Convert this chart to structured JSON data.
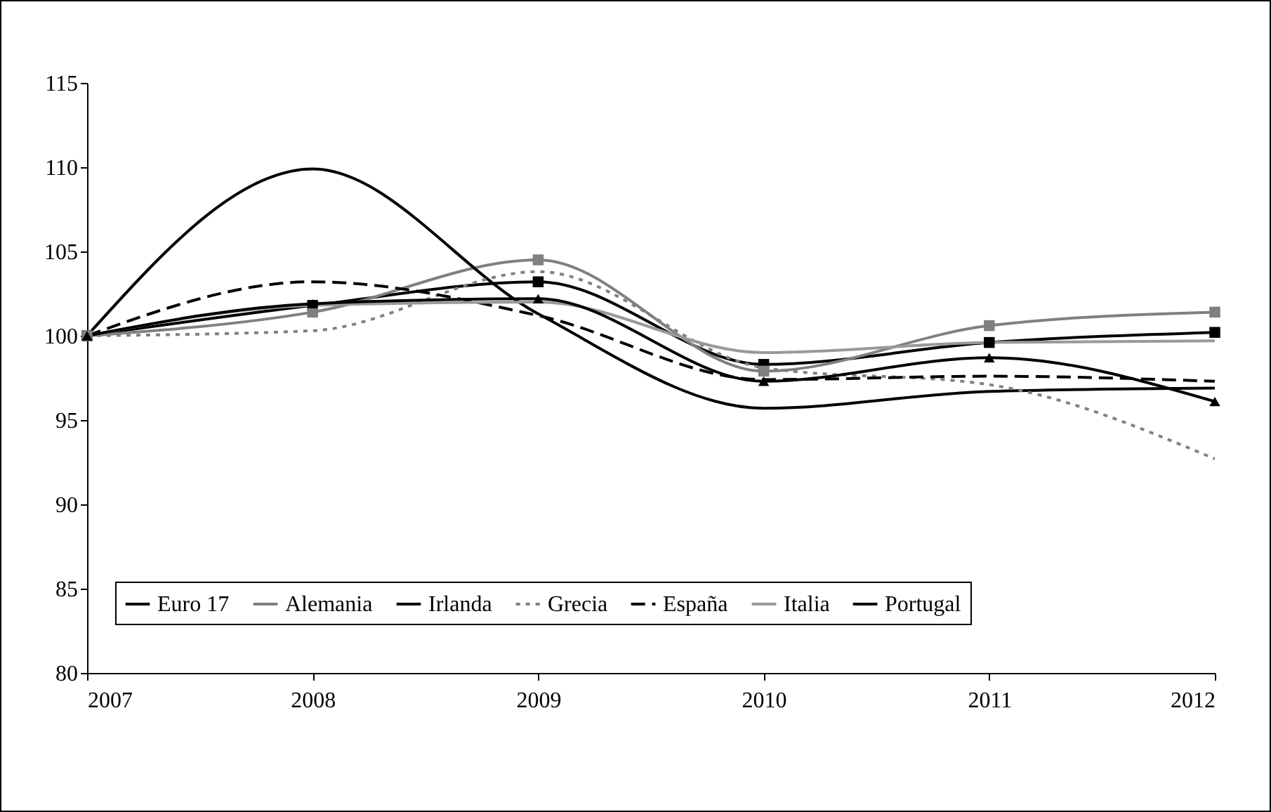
{
  "chart_data": {
    "type": "line",
    "x": [
      2007,
      2008,
      2009,
      2010,
      2011,
      2012
    ],
    "xlim": [
      2007,
      2012
    ],
    "xticks": [
      2007,
      2008,
      2009,
      2010,
      2011,
      2012
    ],
    "ylim": [
      80,
      115
    ],
    "yticks": [
      80,
      85,
      90,
      95,
      100,
      105,
      110,
      115
    ],
    "grid": false,
    "legend": "bottom",
    "series": [
      {
        "name": "Euro 17",
        "color": "#000000",
        "marker": "square",
        "line_style": "solid",
        "values": [
          100,
          101.8,
          103.2,
          98.3,
          99.6,
          100.2
        ]
      },
      {
        "name": "Alemania",
        "color": "#808080",
        "marker": "square",
        "line_style": "solid",
        "values": [
          100,
          101.4,
          104.5,
          97.9,
          100.6,
          101.4
        ]
      },
      {
        "name": "Irlanda",
        "color": "#000000",
        "marker": "none",
        "line_style": "solid",
        "values": [
          100,
          109.9,
          101.3,
          95.7,
          96.7,
          96.9
        ]
      },
      {
        "name": "Grecia",
        "color": "#808080",
        "marker": "none",
        "line_style": "dotted",
        "values": [
          100,
          100.3,
          103.8,
          98.1,
          97.1,
          92.7
        ]
      },
      {
        "name": "España",
        "color": "#000000",
        "marker": "none",
        "line_style": "dashed",
        "values": [
          100,
          103.2,
          101.2,
          97.4,
          97.6,
          97.3
        ]
      },
      {
        "name": "Italia",
        "color": "#999999",
        "marker": "none",
        "line_style": "solid",
        "values": [
          100,
          101.8,
          102.0,
          99.0,
          99.6,
          99.7
        ]
      },
      {
        "name": "Portugal",
        "color": "#000000",
        "marker": "triangle",
        "line_style": "solid",
        "values": [
          100,
          101.9,
          102.2,
          97.3,
          98.7,
          96.1
        ]
      }
    ]
  }
}
